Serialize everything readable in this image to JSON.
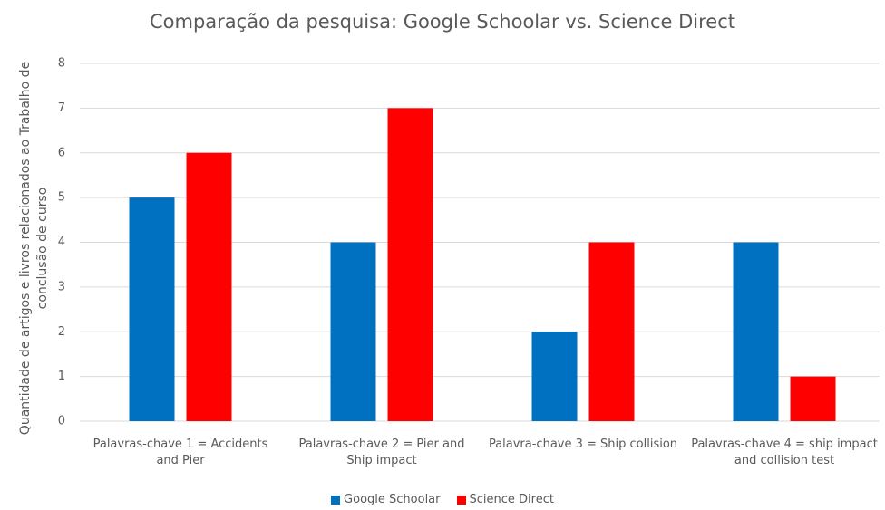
{
  "chart_data": {
    "type": "bar",
    "title": "Comparação da pesquisa: Google Schoolar vs. Science Direct",
    "y_label": "Quantidade de artigos e livros relacionados ao Trabalho de conclusão de curso",
    "categories": [
      "Palavras-chave 1 = Accidents and Pier",
      "Palavras-chave 2 = Pier and Ship impact",
      "Palavra-chave 3 = Ship collision",
      "Palavras-chave 4 = ship impact and collision test"
    ],
    "series": [
      {
        "name": "Google Schoolar",
        "color": "#0070c0",
        "values": [
          5,
          4,
          2,
          4
        ]
      },
      {
        "name": "Science Direct",
        "color": "#ff0000",
        "values": [
          6,
          7,
          4,
          1
        ]
      }
    ],
    "ylim": [
      0,
      8
    ],
    "yticks": [
      0,
      1,
      2,
      3,
      4,
      5,
      6,
      7,
      8
    ],
    "grid": true,
    "legend": "bottom"
  }
}
